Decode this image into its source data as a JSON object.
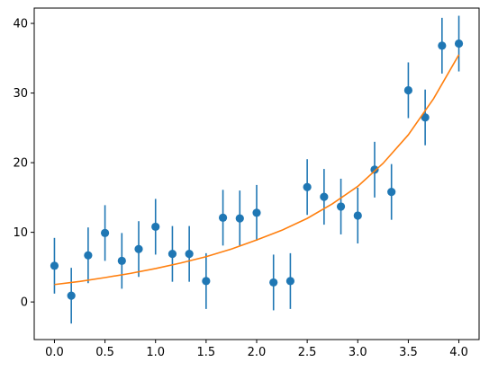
{
  "chart_data": {
    "type": "scatter",
    "title": "",
    "xlabel": "",
    "ylabel": "",
    "xlim": [
      -0.2,
      4.2
    ],
    "ylim": [
      -5.4,
      42.2
    ],
    "grid": false,
    "x_ticks": [
      0.0,
      0.5,
      1.0,
      1.5,
      2.0,
      2.5,
      3.0,
      3.5,
      4.0
    ],
    "x_tick_labels": [
      "0.0",
      "0.5",
      "1.0",
      "1.5",
      "2.0",
      "2.5",
      "3.0",
      "3.5",
      "4.0"
    ],
    "y_ticks": [
      0,
      10,
      20,
      30,
      40
    ],
    "y_tick_labels": [
      "0",
      "10",
      "20",
      "30",
      "40"
    ],
    "series": [
      {
        "kind": "errorbar",
        "color": "#1f77b4",
        "x": [
          0.0,
          0.1667,
          0.3333,
          0.5,
          0.6667,
          0.8333,
          1.0,
          1.1667,
          1.3333,
          1.5,
          1.6667,
          1.8333,
          2.0,
          2.1667,
          2.3333,
          2.5,
          2.6667,
          2.8333,
          3.0,
          3.1667,
          3.3333,
          3.5,
          3.6667,
          3.8333,
          4.0
        ],
        "y": [
          5.2,
          0.9,
          6.7,
          9.9,
          5.9,
          7.6,
          10.8,
          6.9,
          6.9,
          3.0,
          12.1,
          12.0,
          12.8,
          2.8,
          3.0,
          16.5,
          15.1,
          13.7,
          12.4,
          19.0,
          15.8,
          30.4,
          26.5,
          36.8,
          37.1
        ],
        "yerr": 4
      },
      {
        "kind": "line",
        "color": "#ff7f0e",
        "x": [
          0.0,
          0.25,
          0.5,
          0.75,
          1.0,
          1.25,
          1.5,
          1.75,
          2.0,
          2.25,
          2.5,
          2.75,
          3.0,
          3.25,
          3.5,
          3.75,
          4.0
        ],
        "y": [
          2.5,
          2.95,
          3.5,
          4.1,
          4.8,
          5.6,
          6.5,
          7.6,
          8.9,
          10.3,
          12.0,
          14.1,
          16.6,
          19.9,
          24.0,
          29.2,
          35.5
        ]
      }
    ]
  }
}
